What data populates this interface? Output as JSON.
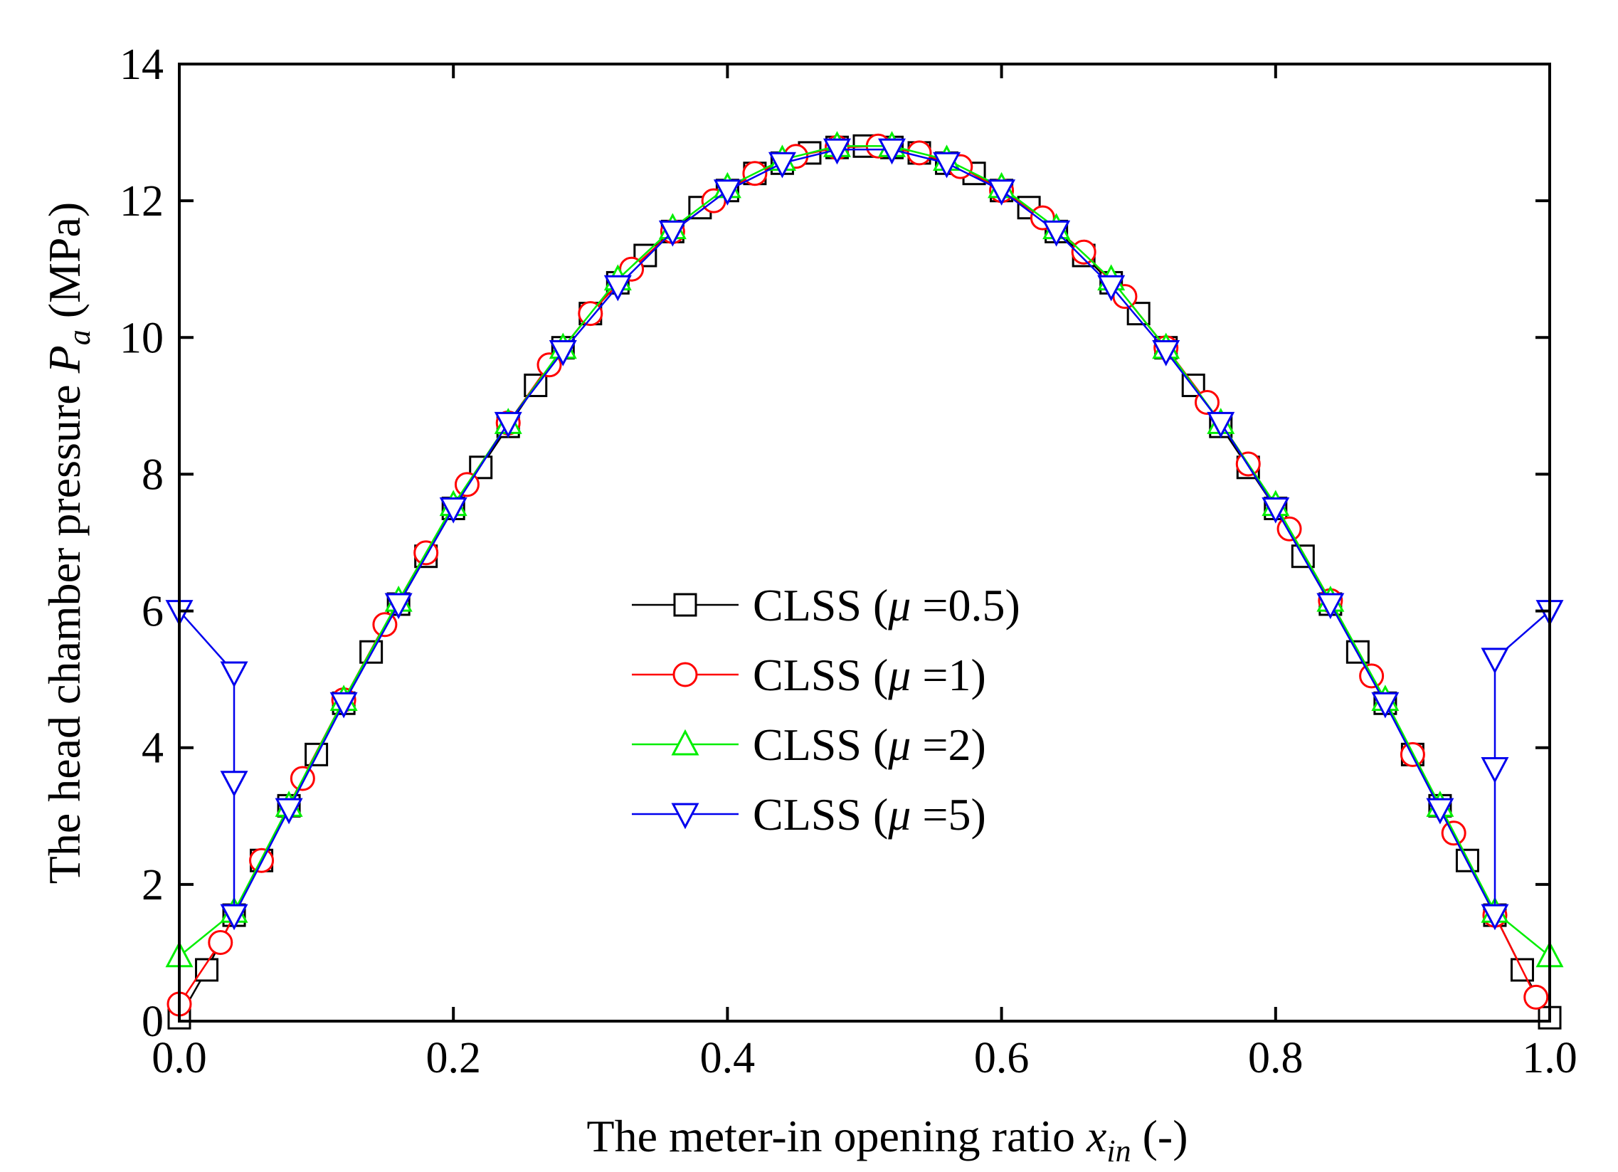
{
  "chart_data": {
    "type": "line",
    "title": "",
    "xlabel": {
      "prefix": "The meter-in opening ratio ",
      "symbol": "x",
      "subscript": "in",
      "suffix": " (-)"
    },
    "ylabel": {
      "prefix": "The head chamber pressure ",
      "symbol": "P",
      "subscript": "a",
      "suffix": " (MPa)"
    },
    "xlim": [
      0,
      1
    ],
    "ylim": [
      0,
      14
    ],
    "xticks": [
      0.0,
      0.2,
      0.4,
      0.6,
      0.8,
      1.0
    ],
    "xtick_labels": [
      "0.0",
      "0.2",
      "0.4",
      "0.6",
      "0.8",
      "1.0"
    ],
    "yticks": [
      0,
      2,
      4,
      6,
      8,
      10,
      12,
      14
    ],
    "ytick_labels": [
      "0",
      "2",
      "4",
      "6",
      "8",
      "10",
      "12",
      "14"
    ],
    "grid": false,
    "legend_position": "center",
    "series": [
      {
        "name": "CLSS (μ =0.5)",
        "label_prefix": "CLSS (",
        "label_symbol": "μ",
        "label_suffix": " =0.5)",
        "color": "#000000",
        "marker": "square",
        "x": [
          0.0,
          0.02,
          0.04,
          0.06,
          0.08,
          0.1,
          0.12,
          0.14,
          0.16,
          0.18,
          0.2,
          0.22,
          0.24,
          0.26,
          0.28,
          0.3,
          0.32,
          0.34,
          0.36,
          0.38,
          0.4,
          0.42,
          0.44,
          0.46,
          0.48,
          0.5,
          0.52,
          0.54,
          0.56,
          0.58,
          0.6,
          0.62,
          0.64,
          0.66,
          0.68,
          0.7,
          0.72,
          0.74,
          0.76,
          0.78,
          0.8,
          0.82,
          0.84,
          0.86,
          0.88,
          0.9,
          0.92,
          0.94,
          0.96,
          0.98,
          1.0
        ],
        "y": [
          0.05,
          0.75,
          1.55,
          2.35,
          3.15,
          3.9,
          4.65,
          5.4,
          6.1,
          6.8,
          7.5,
          8.1,
          8.7,
          9.3,
          9.85,
          10.35,
          10.8,
          11.2,
          11.55,
          11.9,
          12.15,
          12.4,
          12.55,
          12.7,
          12.78,
          12.8,
          12.78,
          12.7,
          12.55,
          12.4,
          12.15,
          11.9,
          11.55,
          11.2,
          10.8,
          10.35,
          9.85,
          9.3,
          8.7,
          8.1,
          7.5,
          6.8,
          6.1,
          5.4,
          4.65,
          3.9,
          3.15,
          2.35,
          1.55,
          0.75,
          0.05
        ]
      },
      {
        "name": "CLSS (μ =1)",
        "label_prefix": "CLSS (",
        "label_symbol": "μ",
        "label_suffix": " =1)",
        "color": "#ff0000",
        "marker": "circle",
        "x": [
          0.0,
          0.03,
          0.06,
          0.09,
          0.12,
          0.15,
          0.18,
          0.21,
          0.24,
          0.27,
          0.3,
          0.33,
          0.36,
          0.39,
          0.42,
          0.45,
          0.48,
          0.51,
          0.54,
          0.57,
          0.6,
          0.63,
          0.66,
          0.69,
          0.72,
          0.75,
          0.78,
          0.81,
          0.84,
          0.87,
          0.9,
          0.93,
          0.96,
          0.99
        ],
        "y": [
          0.25,
          1.15,
          2.35,
          3.55,
          4.7,
          5.8,
          6.85,
          7.85,
          8.75,
          9.6,
          10.35,
          11.0,
          11.55,
          12.0,
          12.4,
          12.65,
          12.78,
          12.8,
          12.7,
          12.5,
          12.15,
          11.75,
          11.25,
          10.6,
          9.85,
          9.05,
          8.15,
          7.2,
          6.15,
          5.05,
          3.9,
          2.75,
          1.55,
          0.35
        ]
      },
      {
        "name": "CLSS (μ =2)",
        "label_prefix": "CLSS (",
        "label_symbol": "μ",
        "label_suffix": " =2)",
        "color": "#00ee00",
        "marker": "triangle-up",
        "x": [
          0.0,
          0.04,
          0.08,
          0.12,
          0.16,
          0.2,
          0.24,
          0.28,
          0.32,
          0.36,
          0.4,
          0.44,
          0.48,
          0.52,
          0.56,
          0.6,
          0.64,
          0.68,
          0.72,
          0.76,
          0.8,
          0.84,
          0.88,
          0.92,
          0.96,
          1.0
        ],
        "y": [
          0.95,
          1.6,
          3.15,
          4.7,
          6.15,
          7.55,
          8.75,
          9.85,
          10.85,
          11.6,
          12.2,
          12.6,
          12.8,
          12.8,
          12.6,
          12.2,
          11.6,
          10.85,
          9.85,
          8.75,
          7.55,
          6.15,
          4.7,
          3.15,
          1.6,
          0.95
        ]
      },
      {
        "name": "CLSS (μ =5)",
        "label_prefix": "CLSS (",
        "label_symbol": "μ",
        "label_suffix": " =5)",
        "color": "#0000ee",
        "marker": "triangle-down",
        "x": [
          0.0,
          0.04,
          0.04,
          0.04,
          0.08,
          0.12,
          0.16,
          0.2,
          0.24,
          0.28,
          0.32,
          0.36,
          0.4,
          0.44,
          0.48,
          0.52,
          0.56,
          0.6,
          0.64,
          0.68,
          0.72,
          0.76,
          0.8,
          0.84,
          0.88,
          0.92,
          0.96,
          0.96,
          0.96,
          1.0
        ],
        "y": [
          6.0,
          5.1,
          3.5,
          1.55,
          3.1,
          4.65,
          6.1,
          7.5,
          8.75,
          9.8,
          10.75,
          11.55,
          12.15,
          12.55,
          12.75,
          12.75,
          12.55,
          12.15,
          11.55,
          10.75,
          9.8,
          8.75,
          7.5,
          6.1,
          4.65,
          3.1,
          1.55,
          3.7,
          5.3,
          6.0
        ]
      }
    ]
  }
}
